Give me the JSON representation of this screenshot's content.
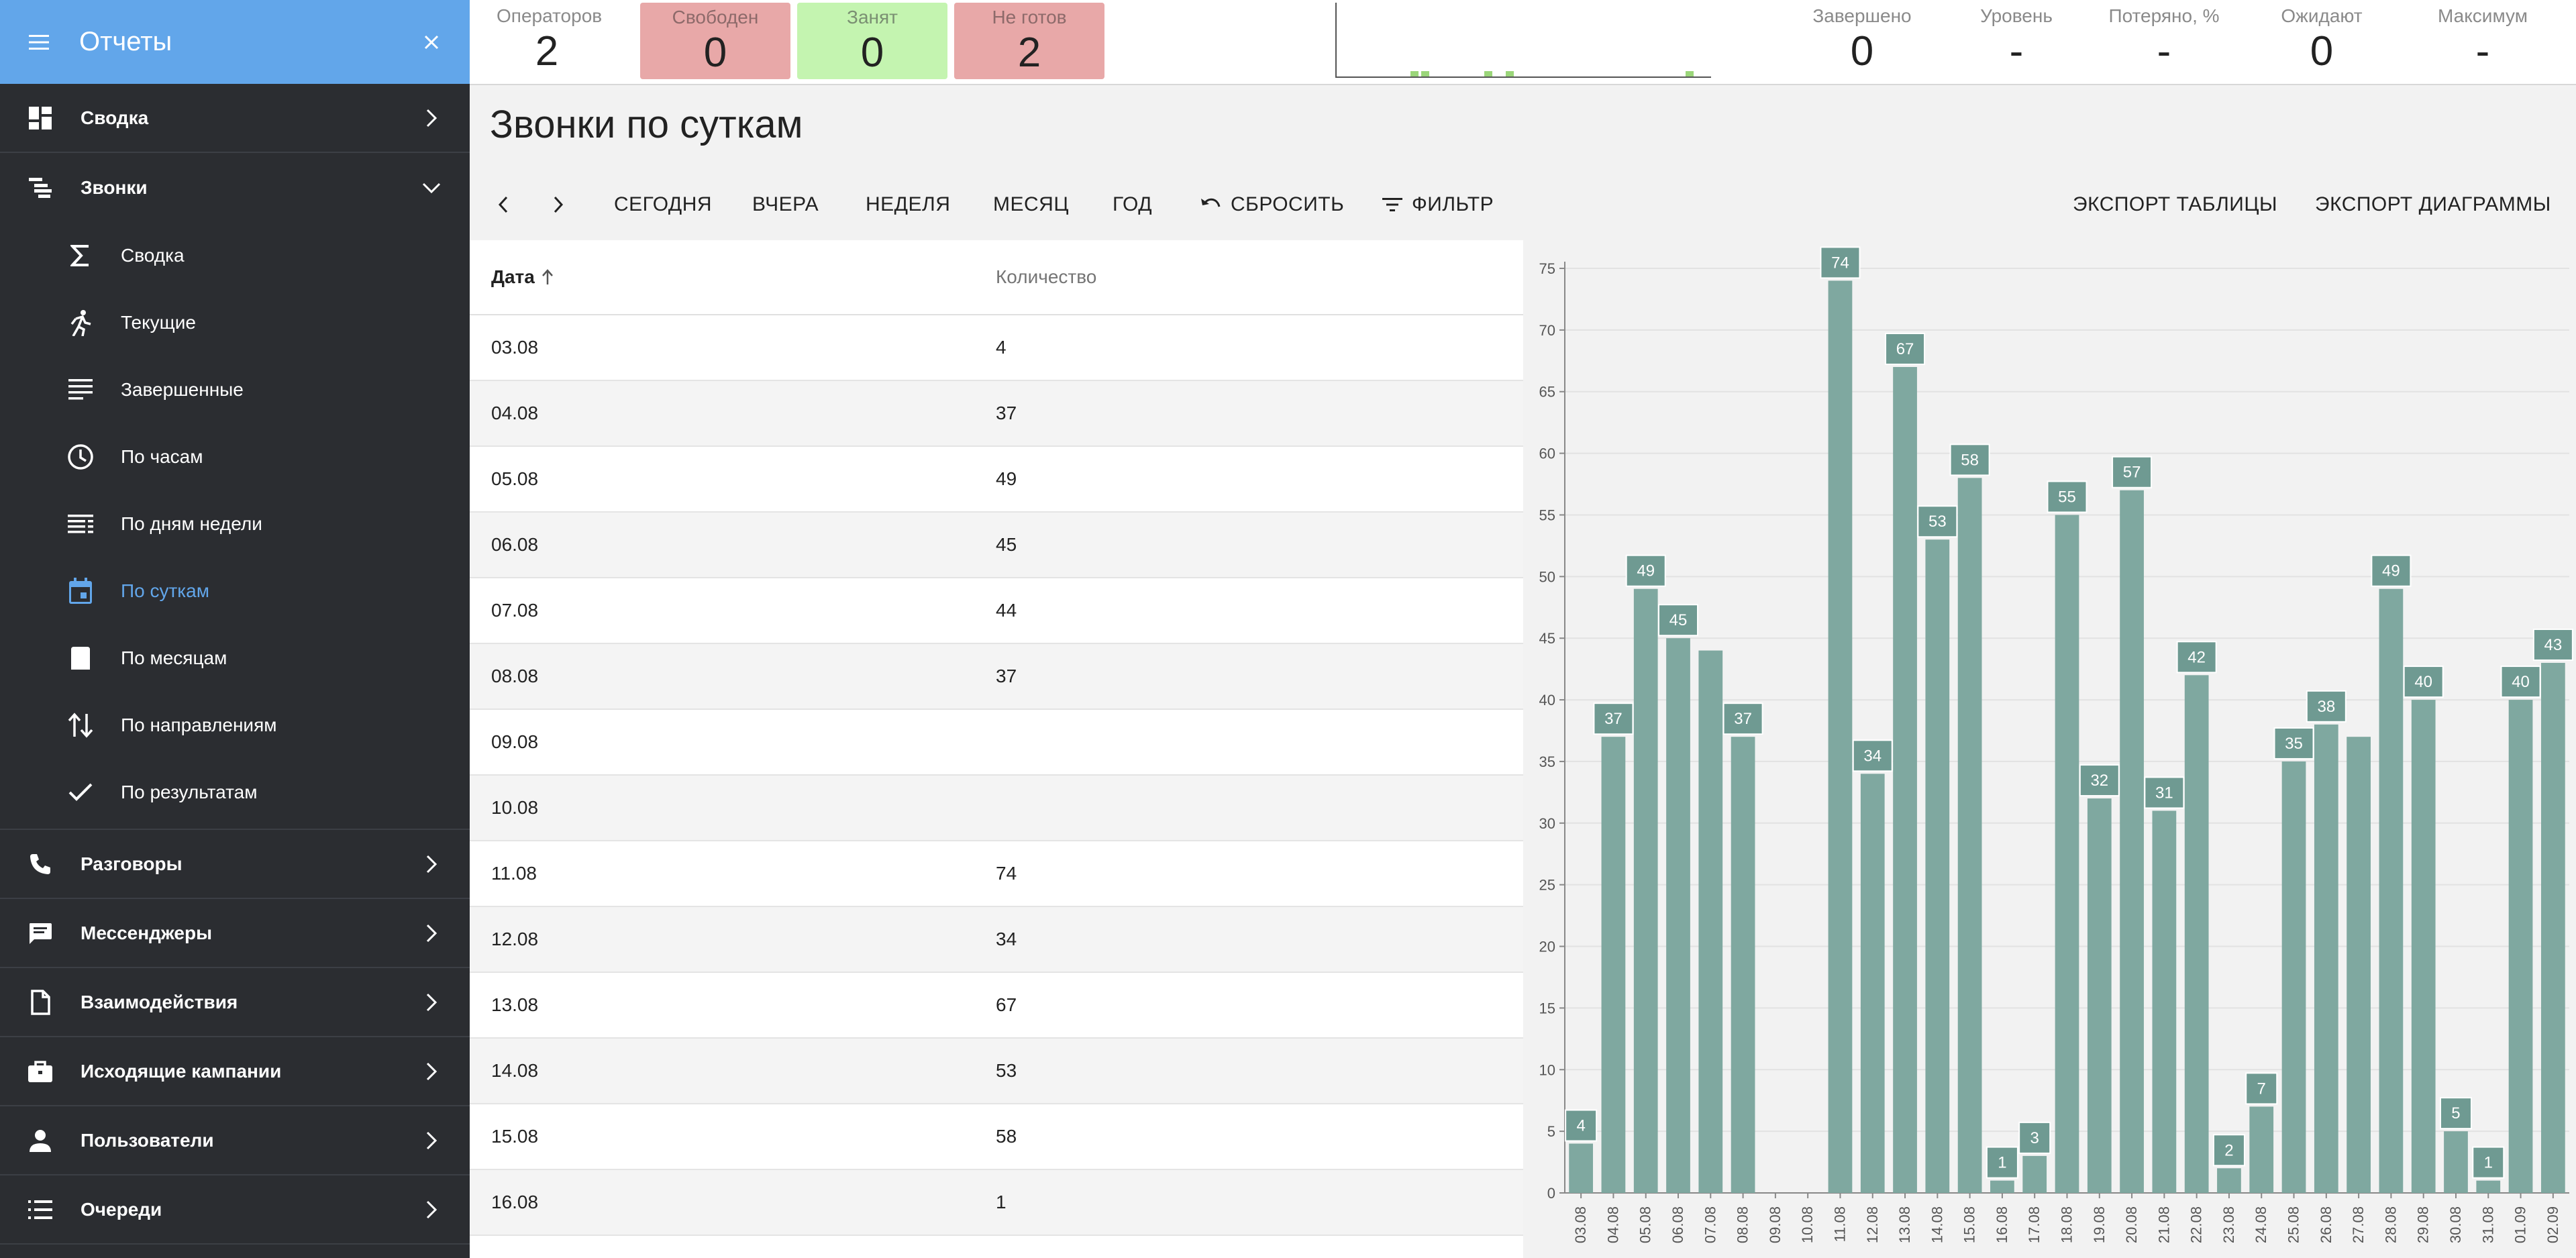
{
  "sidebar": {
    "title": "Отчеты",
    "groups_top": [
      {
        "label": "Сводка",
        "icon": "dashboard-icon",
        "name": "svodka"
      },
      {
        "label": "Звонки",
        "icon": "call-tree-icon",
        "name": "zvonki"
      }
    ],
    "subitems": [
      {
        "label": "Сводка",
        "icon": "sigma-icon",
        "name": "svodka",
        "active": false
      },
      {
        "label": "Текущие",
        "icon": "running-icon",
        "name": "tekushchie",
        "active": false
      },
      {
        "label": "Завершенные",
        "icon": "lines-icon",
        "name": "zavershennye",
        "active": false
      },
      {
        "label": "По часам",
        "icon": "clock-icon",
        "name": "po-chasam",
        "active": false
      },
      {
        "label": "По дням недели",
        "icon": "list-lines-icon",
        "name": "po-dnyam-nedeli",
        "active": false
      },
      {
        "label": "По суткам",
        "icon": "calendar-icon",
        "name": "po-sutkam",
        "active": true
      },
      {
        "label": "По месяцам",
        "icon": "month-icon",
        "name": "po-mesyacam",
        "active": false
      },
      {
        "label": "По направлениям",
        "icon": "swap-vertical-icon",
        "name": "po-napravleniyam",
        "active": false
      },
      {
        "label": "По результатам",
        "icon": "check-icon",
        "name": "po-rezultatam",
        "active": false
      }
    ],
    "groups_bottom": [
      {
        "label": "Разговоры",
        "icon": "phone-icon",
        "name": "razgovory"
      },
      {
        "label": "Мессенджеры",
        "icon": "chat-icon",
        "name": "messendzhery"
      },
      {
        "label": "Взаимодействия",
        "icon": "document-icon",
        "name": "vzaimodeystviya"
      },
      {
        "label": "Исходящие кампании",
        "icon": "briefcase-icon",
        "name": "iskhodyashchie-kampanii"
      },
      {
        "label": "Пользователи",
        "icon": "person-icon",
        "name": "polzovateli"
      },
      {
        "label": "Очереди",
        "icon": "list-icon",
        "name": "ocheredi"
      }
    ]
  },
  "stats": {
    "operators": {
      "label": "Операторов",
      "value": "2"
    },
    "free": {
      "label": "Свободен",
      "value": "0"
    },
    "busy": {
      "label": "Занят",
      "value": "0"
    },
    "not_ready": {
      "label": "Не готов",
      "value": "2"
    },
    "completed": {
      "label": "Завершено",
      "value": "0"
    },
    "level": {
      "label": "Уровень",
      "value": "-"
    },
    "lost": {
      "label": "Потеряно, %",
      "value": "-"
    },
    "waiting": {
      "label": "Ожидают",
      "value": "0"
    },
    "maximum": {
      "label": "Максимум",
      "value": "-"
    }
  },
  "page": {
    "title": "Звонки по суткам"
  },
  "toolbar": {
    "today": "СЕГОДНЯ",
    "yesterday": "ВЧЕРА",
    "week": "НЕДЕЛЯ",
    "month": "МЕСЯЦ",
    "year": "ГОД",
    "reset": "СБРОСИТЬ",
    "filter": "ФИЛЬТР",
    "export_table": "ЭКСПОРТ ТАБЛИЦЫ",
    "export_chart": "ЭКСПОРТ ДИАГРАММЫ"
  },
  "table": {
    "col_date": "Дата",
    "col_count": "Количество",
    "rows": [
      {
        "date": "03.08",
        "count": "4"
      },
      {
        "date": "04.08",
        "count": "37"
      },
      {
        "date": "05.08",
        "count": "49"
      },
      {
        "date": "06.08",
        "count": "45"
      },
      {
        "date": "07.08",
        "count": "44"
      },
      {
        "date": "08.08",
        "count": "37"
      },
      {
        "date": "09.08",
        "count": ""
      },
      {
        "date": "10.08",
        "count": ""
      },
      {
        "date": "11.08",
        "count": "74"
      },
      {
        "date": "12.08",
        "count": "34"
      },
      {
        "date": "13.08",
        "count": "67"
      },
      {
        "date": "14.08",
        "count": "53"
      },
      {
        "date": "15.08",
        "count": "58"
      },
      {
        "date": "16.08",
        "count": "1"
      }
    ]
  },
  "colors": {
    "bar": "#7fa8a0",
    "label_bg": "#6f9a92",
    "accent": "#62a6ea"
  },
  "chart_data": {
    "type": "bar",
    "categories": [
      "03.08",
      "04.08",
      "05.08",
      "06.08",
      "07.08",
      "08.08",
      "09.08",
      "10.08",
      "11.08",
      "12.08",
      "13.08",
      "14.08",
      "15.08",
      "16.08",
      "17.08",
      "18.08",
      "19.08",
      "20.08",
      "21.08",
      "22.08",
      "23.08",
      "24.08",
      "25.08",
      "26.08",
      "27.08",
      "28.08",
      "29.08",
      "30.08",
      "31.08",
      "01.09",
      "02.09"
    ],
    "values": [
      4,
      37,
      49,
      45,
      44,
      37,
      0,
      0,
      74,
      34,
      67,
      53,
      58,
      1,
      3,
      55,
      32,
      57,
      31,
      42,
      2,
      7,
      35,
      38,
      37,
      49,
      40,
      5,
      1,
      40,
      43
    ],
    "data_labels": [
      "4",
      "37",
      "49",
      "45",
      "",
      "37",
      "",
      "",
      "74",
      "34",
      "67",
      "53",
      "58",
      "1",
      "3",
      "55",
      "32",
      "57",
      "31",
      "42",
      "2",
      "7",
      "35",
      "38",
      "",
      "49",
      "40",
      "5",
      "1",
      "40",
      "43"
    ],
    "yticks": [
      0,
      5,
      10,
      15,
      20,
      25,
      30,
      35,
      40,
      45,
      50,
      55,
      60,
      65,
      70,
      75
    ],
    "ylim": [
      0,
      75
    ],
    "grid": true
  }
}
